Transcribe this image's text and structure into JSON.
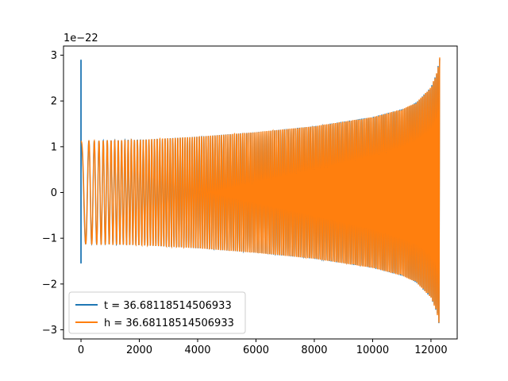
{
  "chart_data": {
    "type": "line",
    "title": "",
    "xlabel": "",
    "ylabel": "",
    "y_offset_label": "1e−22",
    "xlim": [
      -600,
      12900
    ],
    "ylim": [
      -3.2,
      3.2
    ],
    "x_ticks": [
      0,
      2000,
      4000,
      6000,
      8000,
      10000,
      12000
    ],
    "y_ticks": [
      -3,
      -2,
      -1,
      0,
      1,
      2,
      3
    ],
    "x_tick_labels": [
      "0",
      "2000",
      "4000",
      "6000",
      "8000",
      "10000",
      "12000"
    ],
    "y_tick_labels": [
      "−3",
      "−2",
      "−1",
      "0",
      "1",
      "2",
      "3"
    ],
    "grid": false,
    "legend_position": "lower-left",
    "series": [
      {
        "name": "t = 36.68118514506933",
        "color": "#1f77b4",
        "initial_spike": {
          "x": 0,
          "max": 2.9,
          "min": -1.55
        },
        "envelope_x": [
          0,
          2000,
          4000,
          6000,
          8000,
          10000,
          11000,
          11500,
          12000,
          12200,
          12300
        ],
        "envelope_amplitude": [
          1.12,
          1.15,
          1.22,
          1.32,
          1.45,
          1.65,
          1.82,
          1.97,
          2.3,
          2.62,
          2.95
        ],
        "cycles": 170,
        "x_end": 12300
      },
      {
        "name": "h = 36.68118514506933",
        "color": "#ff7f0e",
        "envelope_x": [
          0,
          2000,
          4000,
          6000,
          8000,
          10000,
          11000,
          11500,
          12000,
          12200,
          12300
        ],
        "envelope_amplitude": [
          1.12,
          1.15,
          1.22,
          1.32,
          1.45,
          1.65,
          1.82,
          1.97,
          2.3,
          2.62,
          2.95
        ],
        "cycles": 170,
        "x_end": 12300
      }
    ]
  }
}
